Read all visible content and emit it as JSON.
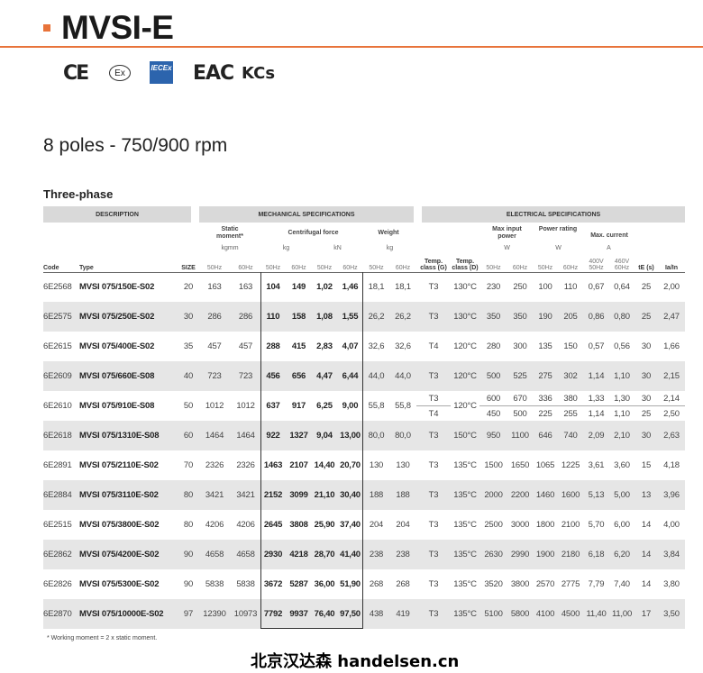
{
  "header": {
    "title": "MVSI-E",
    "accent": "#e8733a"
  },
  "certifications": [
    "CE",
    "Ex",
    "IECEx",
    "EAC",
    "KCs"
  ],
  "subtitle": "8 poles - 750/900 rpm",
  "section": "Three-phase",
  "bands": {
    "description": "DESCRIPTION",
    "mechanical": "MECHANICAL SPECIFICATIONS",
    "electrical": "ELECTRICAL SPECIFICATIONS"
  },
  "groups": {
    "static": "Static moment*",
    "centrifugal": "Centrifugal force",
    "weight": "Weight",
    "max_input": "Max input power",
    "power_rating": "Power rating",
    "max_current": "Max. current"
  },
  "units": {
    "static": "kgmm",
    "cf_kg": "kg",
    "cf_kn": "kN",
    "weight": "kg",
    "max_input": "W",
    "power_rating": "W",
    "max_current": "A"
  },
  "columns": [
    "Code",
    "Type",
    "SIZE",
    "50Hz",
    "60Hz",
    "50Hz",
    "60Hz",
    "50Hz",
    "60Hz",
    "50Hz",
    "60Hz",
    "Temp. class (G)",
    "Temp. class (D)",
    "50Hz",
    "60Hz",
    "50Hz",
    "60Hz",
    "400V 50Hz",
    "460V 60Hz",
    "tE (s)",
    "Ia/In"
  ],
  "rows": [
    {
      "code": "6E2568",
      "type": "MVSI 075/150E-S02",
      "size": "20",
      "static": [
        "163",
        "163"
      ],
      "cf": [
        "104",
        "149",
        "1,02",
        "1,46"
      ],
      "weight": [
        "18,1",
        "18,1"
      ],
      "tempD": "130°C",
      "elec": [
        [
          "T3",
          "230",
          "250",
          "100",
          "110",
          "0,67",
          "0,64",
          "25",
          "2,00"
        ]
      ]
    },
    {
      "code": "6E2575",
      "type": "MVSI 075/250E-S02",
      "size": "30",
      "static": [
        "286",
        "286"
      ],
      "cf": [
        "110",
        "158",
        "1,08",
        "1,55"
      ],
      "weight": [
        "26,2",
        "26,2"
      ],
      "tempD": "130°C",
      "elec": [
        [
          "T3",
          "350",
          "350",
          "190",
          "205",
          "0,86",
          "0,80",
          "25",
          "2,47"
        ]
      ]
    },
    {
      "code": "6E2615",
      "type": "MVSI 075/400E-S02",
      "size": "35",
      "static": [
        "457",
        "457"
      ],
      "cf": [
        "288",
        "415",
        "2,83",
        "4,07"
      ],
      "weight": [
        "32,6",
        "32,6"
      ],
      "tempD": "120°C",
      "elec": [
        [
          "T4",
          "280",
          "300",
          "135",
          "150",
          "0,57",
          "0,56",
          "30",
          "1,66"
        ]
      ]
    },
    {
      "code": "6E2609",
      "type": "MVSI 075/660E-S08",
      "size": "40",
      "static": [
        "723",
        "723"
      ],
      "cf": [
        "456",
        "656",
        "4,47",
        "6,44"
      ],
      "weight": [
        "44,0",
        "44,0"
      ],
      "tempD": "120°C",
      "elec": [
        [
          "T3",
          "500",
          "525",
          "275",
          "302",
          "1,14",
          "1,10",
          "30",
          "2,15"
        ]
      ]
    },
    {
      "code": "6E2610",
      "type": "MVSI 075/910E-S08",
      "size": "50",
      "static": [
        "1012",
        "1012"
      ],
      "cf": [
        "637",
        "917",
        "6,25",
        "9,00"
      ],
      "weight": [
        "55,8",
        "55,8"
      ],
      "tempD": "120°C",
      "elec": [
        [
          "T3",
          "600",
          "670",
          "336",
          "380",
          "1,33",
          "1,30",
          "30",
          "2,14"
        ],
        [
          "T4",
          "450",
          "500",
          "225",
          "255",
          "1,14",
          "1,10",
          "25",
          "2,50"
        ]
      ]
    },
    {
      "code": "6E2618",
      "type": "MVSI 075/1310E-S08",
      "size": "60",
      "static": [
        "1464",
        "1464"
      ],
      "cf": [
        "922",
        "1327",
        "9,04",
        "13,00"
      ],
      "weight": [
        "80,0",
        "80,0"
      ],
      "tempD": "150°C",
      "elec": [
        [
          "T3",
          "950",
          "1100",
          "646",
          "740",
          "2,09",
          "2,10",
          "30",
          "2,63"
        ]
      ]
    },
    {
      "code": "6E2891",
      "type": "MVSI 075/2110E-S02",
      "size": "70",
      "static": [
        "2326",
        "2326"
      ],
      "cf": [
        "1463",
        "2107",
        "14,40",
        "20,70"
      ],
      "weight": [
        "130",
        "130"
      ],
      "tempD": "135°C",
      "elec": [
        [
          "T3",
          "1500",
          "1650",
          "1065",
          "1225",
          "3,61",
          "3,60",
          "15",
          "4,18"
        ]
      ]
    },
    {
      "code": "6E2884",
      "type": "MVSI 075/3110E-S02",
      "size": "80",
      "static": [
        "3421",
        "3421"
      ],
      "cf": [
        "2152",
        "3099",
        "21,10",
        "30,40"
      ],
      "weight": [
        "188",
        "188"
      ],
      "tempD": "135°C",
      "elec": [
        [
          "T3",
          "2000",
          "2200",
          "1460",
          "1600",
          "5,13",
          "5,00",
          "13",
          "3,96"
        ]
      ]
    },
    {
      "code": "6E2515",
      "type": "MVSI 075/3800E-S02",
      "size": "80",
      "static": [
        "4206",
        "4206"
      ],
      "cf": [
        "2645",
        "3808",
        "25,90",
        "37,40"
      ],
      "weight": [
        "204",
        "204"
      ],
      "tempD": "135°C",
      "elec": [
        [
          "T3",
          "2500",
          "3000",
          "1800",
          "2100",
          "5,70",
          "6,00",
          "14",
          "4,00"
        ]
      ]
    },
    {
      "code": "6E2862",
      "type": "MVSI 075/4200E-S02",
      "size": "90",
      "static": [
        "4658",
        "4658"
      ],
      "cf": [
        "2930",
        "4218",
        "28,70",
        "41,40"
      ],
      "weight": [
        "238",
        "238"
      ],
      "tempD": "135°C",
      "elec": [
        [
          "T3",
          "2630",
          "2990",
          "1900",
          "2180",
          "6,18",
          "6,20",
          "14",
          "3,84"
        ]
      ]
    },
    {
      "code": "6E2826",
      "type": "MVSI 075/5300E-S02",
      "size": "90",
      "static": [
        "5838",
        "5838"
      ],
      "cf": [
        "3672",
        "5287",
        "36,00",
        "51,90"
      ],
      "weight": [
        "268",
        "268"
      ],
      "tempD": "135°C",
      "elec": [
        [
          "T3",
          "3520",
          "3800",
          "2570",
          "2775",
          "7,79",
          "7,40",
          "14",
          "3,80"
        ]
      ]
    },
    {
      "code": "6E2870",
      "type": "MVSI 075/10000E-S02",
      "size": "97",
      "static": [
        "12390",
        "10973"
      ],
      "cf": [
        "7792",
        "9937",
        "76,40",
        "97,50"
      ],
      "weight": [
        "438",
        "419"
      ],
      "tempD": "135°C",
      "elec": [
        [
          "T3",
          "5100",
          "5800",
          "4100",
          "4500",
          "11,40",
          "11,00",
          "17",
          "3,50"
        ]
      ]
    }
  ],
  "footnote": "* Working moment = 2 x static moment.",
  "watermark": "北京汉达森 handelsen.cn"
}
